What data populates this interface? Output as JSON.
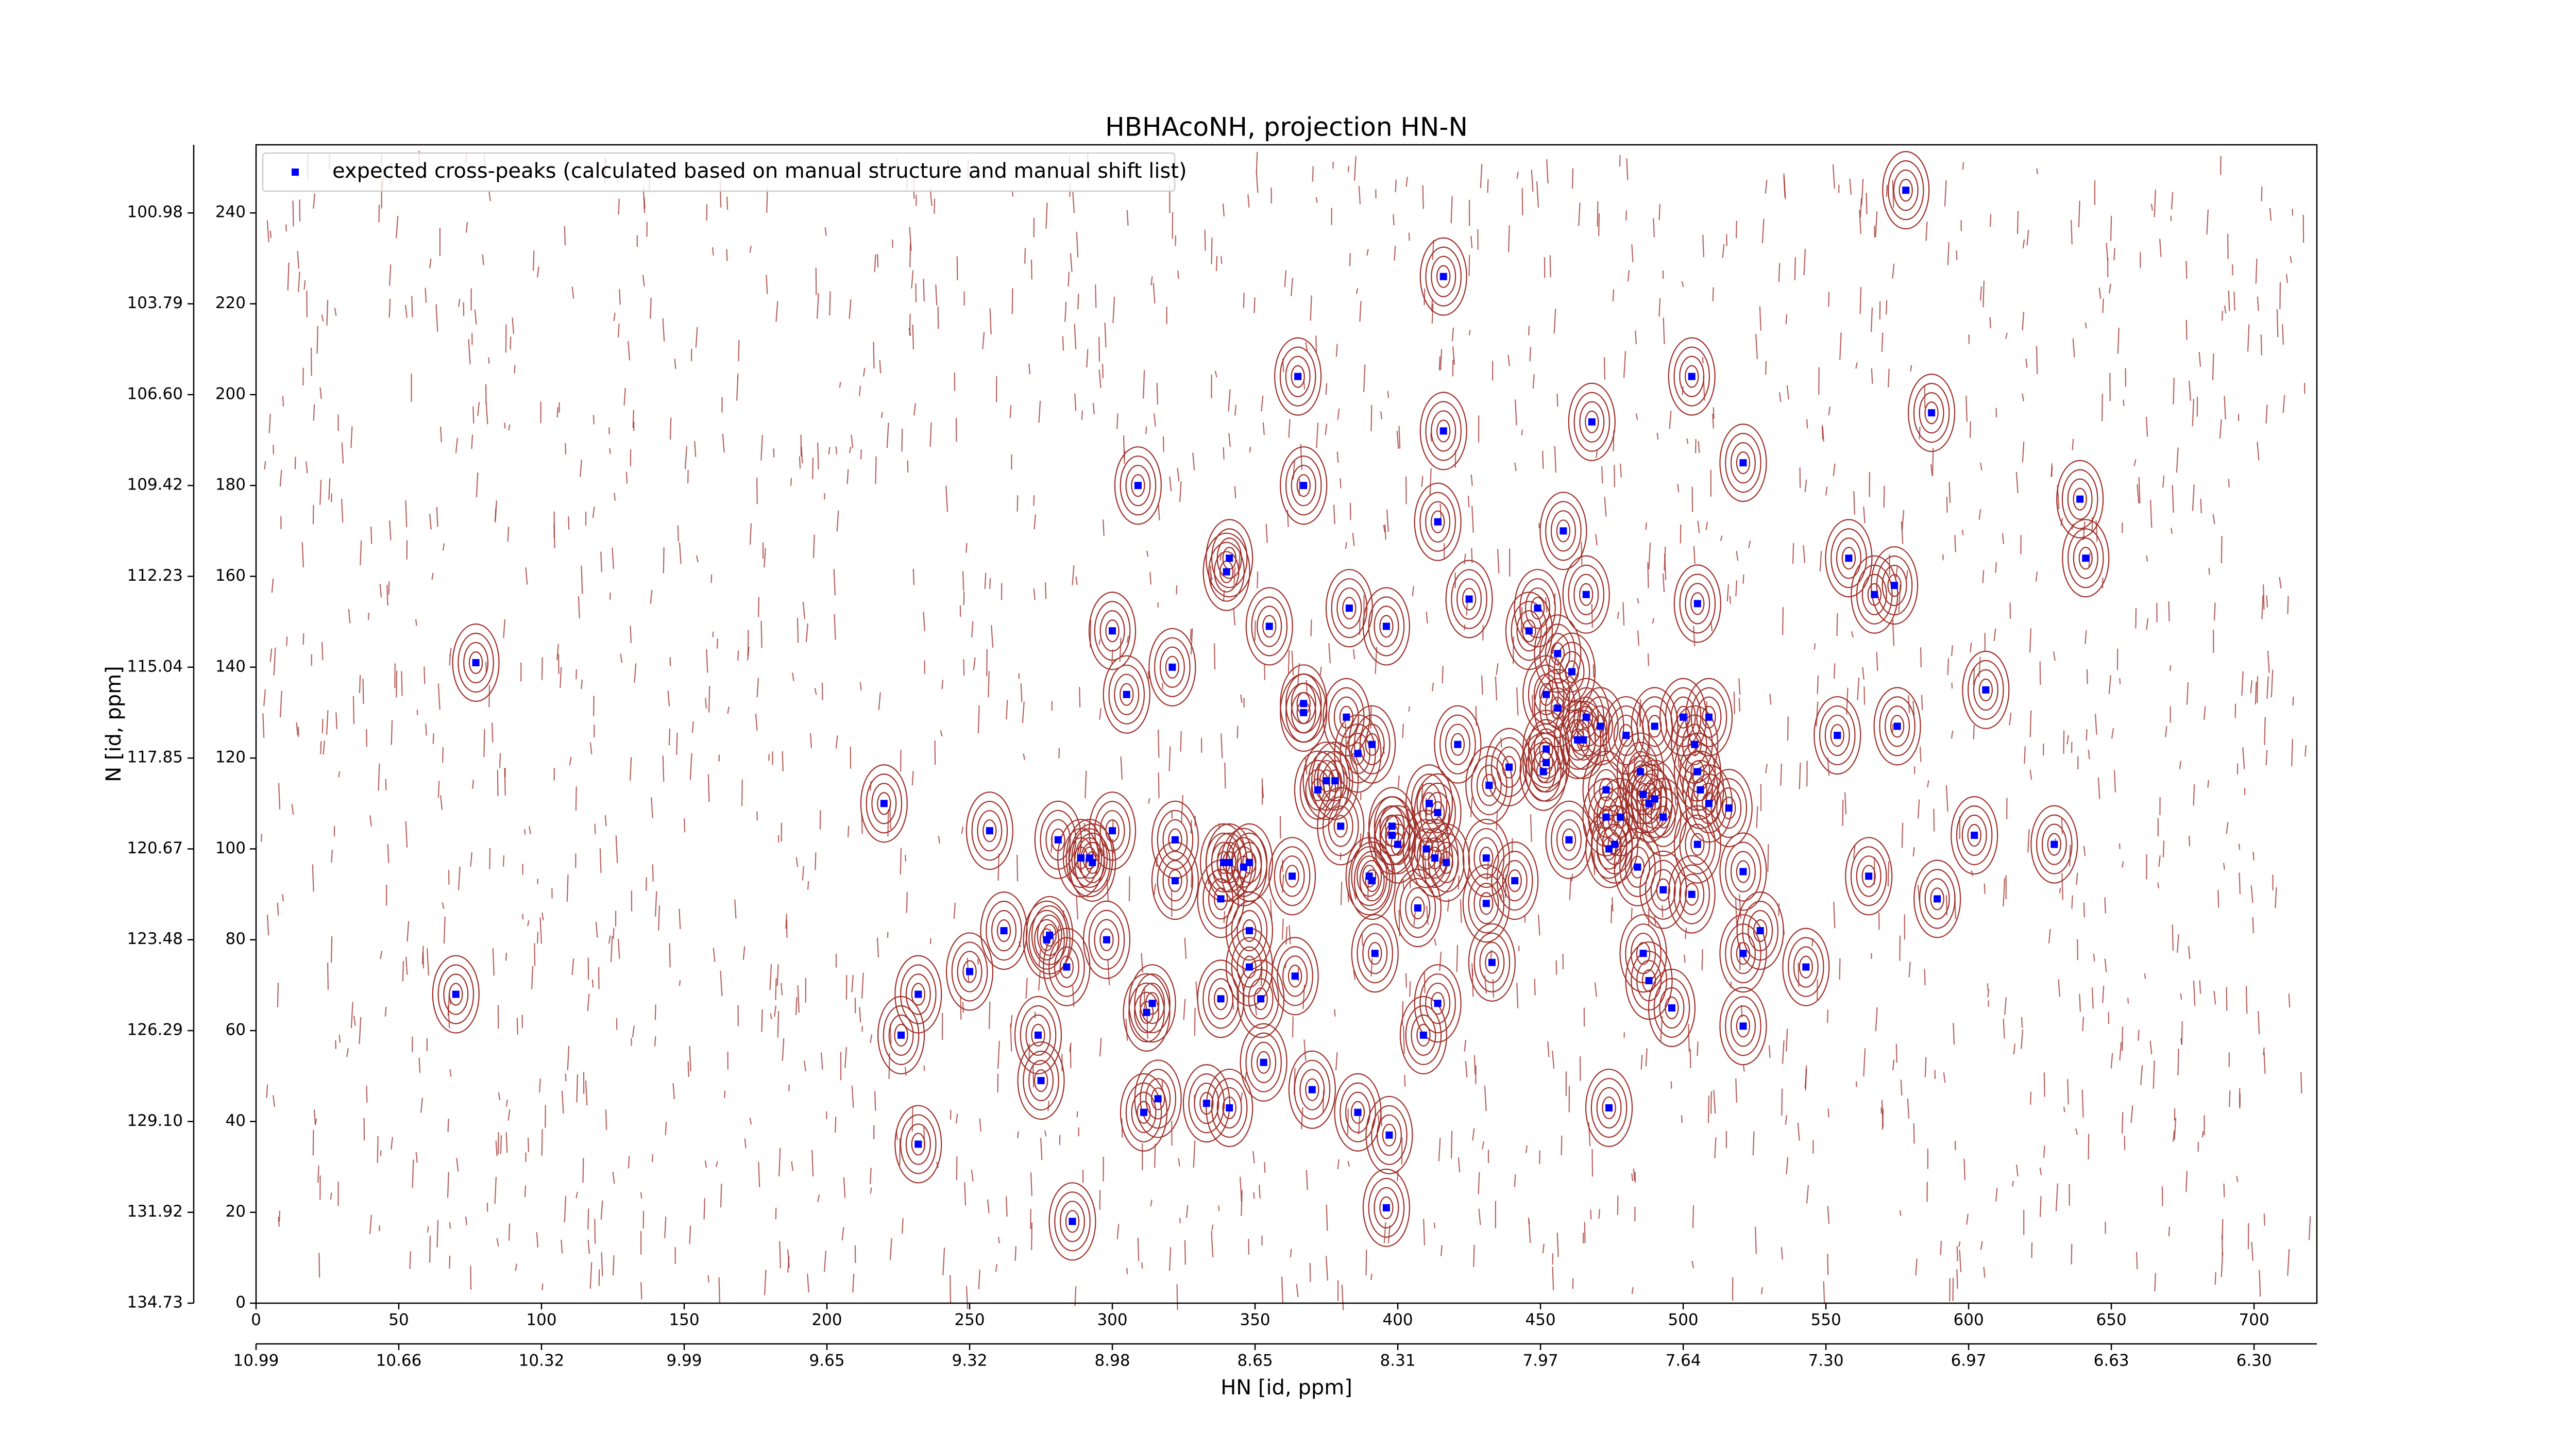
{
  "chart_data": {
    "type": "scatter",
    "title": "HBHAcoNH, projection HN-N",
    "xlabel": "HN [id, ppm]",
    "ylabel": "N [id, ppm]",
    "xlim": [
      0,
      722
    ],
    "ylim": [
      0,
      255
    ],
    "xticks": [
      0,
      50,
      100,
      150,
      200,
      250,
      300,
      350,
      400,
      450,
      500,
      550,
      600,
      650,
      700
    ],
    "yticks": [
      0,
      20,
      40,
      60,
      80,
      100,
      120,
      140,
      160,
      180,
      200,
      220,
      240
    ],
    "x2ticks": [
      {
        "value": 0,
        "label": "10.99"
      },
      {
        "value": 50,
        "label": "10.66"
      },
      {
        "value": 100,
        "label": "10.32"
      },
      {
        "value": 150,
        "label": "9.99"
      },
      {
        "value": 200,
        "label": "9.65"
      },
      {
        "value": 250,
        "label": "9.32"
      },
      {
        "value": 300,
        "label": "8.98"
      },
      {
        "value": 350,
        "label": "8.65"
      },
      {
        "value": 400,
        "label": "8.31"
      },
      {
        "value": 450,
        "label": "7.97"
      },
      {
        "value": 500,
        "label": "7.64"
      },
      {
        "value": 550,
        "label": "7.30"
      },
      {
        "value": 600,
        "label": "6.97"
      },
      {
        "value": 650,
        "label": "6.63"
      },
      {
        "value": 700,
        "label": "6.30"
      }
    ],
    "y2ticks": [
      {
        "value": 0,
        "label": "134.73"
      },
      {
        "value": 20,
        "label": "131.92"
      },
      {
        "value": 40,
        "label": "129.10"
      },
      {
        "value": 60,
        "label": "126.29"
      },
      {
        "value": 80,
        "label": "123.48"
      },
      {
        "value": 100,
        "label": "120.67"
      },
      {
        "value": 120,
        "label": "117.85"
      },
      {
        "value": 140,
        "label": "115.04"
      },
      {
        "value": 160,
        "label": "112.23"
      },
      {
        "value": 180,
        "label": "109.42"
      },
      {
        "value": 200,
        "label": "106.60"
      },
      {
        "value": 220,
        "label": "103.79"
      },
      {
        "value": 240,
        "label": "100.98"
      }
    ],
    "legend": "upper left",
    "contour_color": "#a0302a",
    "series": [
      {
        "name": "expected cross-peaks (calculated based on manual structure and manual shift list)",
        "color": "#0000ff",
        "x": [
          578,
          416,
          365,
          503,
          587,
          416,
          468,
          521,
          309,
          367,
          414,
          458,
          639,
          641,
          558,
          341,
          340,
          574,
          567,
          466,
          505,
          425,
          383,
          355,
          396,
          300,
          449,
          446,
          321,
          77,
          456,
          461,
          606,
          305,
          452,
          367,
          456,
          382,
          367,
          509,
          575,
          466,
          471,
          500,
          490,
          480,
          463,
          465,
          391,
          386,
          554,
          421,
          452,
          504,
          452,
          439,
          451,
          378,
          375,
          505,
          432,
          485,
          506,
          372,
          486,
          490,
          488,
          509,
          220,
          473,
          411,
          516,
          478,
          414,
          473,
          493,
          398,
          380,
          257,
          300,
          602,
          630,
          281,
          460,
          505,
          398,
          400,
          322,
          476,
          474,
          410,
          289,
          292,
          293,
          348,
          339,
          341,
          413,
          417,
          346,
          431,
          484,
          521,
          390,
          391,
          322,
          441,
          363,
          565,
          493,
          589,
          338,
          503,
          431,
          407,
          262,
          527,
          348,
          278,
          277,
          298,
          486,
          392,
          521,
          433,
          284,
          250,
          348,
          364,
          543,
          488,
          70,
          232,
          338,
          352,
          314,
          414,
          496,
          312,
          521,
          226,
          274,
          409,
          353,
          275,
          370,
          316,
          333,
          341,
          311,
          474,
          386,
          397,
          232,
          396,
          286
        ],
        "y": [
          245,
          226,
          204,
          204,
          196,
          192,
          194,
          185,
          180,
          180,
          172,
          170,
          177,
          164,
          164,
          164,
          161,
          158,
          156,
          156,
          154,
          155,
          153,
          149,
          149,
          148,
          153,
          148,
          140,
          141,
          143,
          139,
          135,
          134,
          134,
          132,
          131,
          129,
          130,
          129,
          127,
          129,
          127,
          129,
          127,
          125,
          124,
          124,
          123,
          121,
          125,
          123,
          122,
          123,
          119,
          118,
          117,
          115,
          115,
          117,
          114,
          117,
          113,
          113,
          112,
          111,
          110,
          110,
          110,
          113,
          110,
          109,
          107,
          108,
          107,
          107,
          105,
          105,
          104,
          104,
          103,
          101,
          102,
          102,
          101,
          103,
          101,
          102,
          101,
          100,
          100,
          98,
          98,
          97,
          97,
          97,
          97,
          98,
          97,
          96,
          98,
          96,
          95,
          94,
          93,
          93,
          93,
          94,
          94,
          91,
          89,
          89,
          90,
          88,
          87,
          82,
          82,
          82,
          81,
          80,
          80,
          77,
          77,
          77,
          75,
          74,
          73,
          74,
          72,
          74,
          71,
          68,
          68,
          67,
          67,
          66,
          66,
          65,
          64,
          61,
          59,
          59,
          59,
          53,
          49,
          47,
          45,
          44,
          43,
          42,
          43,
          42,
          37,
          35,
          21,
          18
        ]
      }
    ]
  }
}
